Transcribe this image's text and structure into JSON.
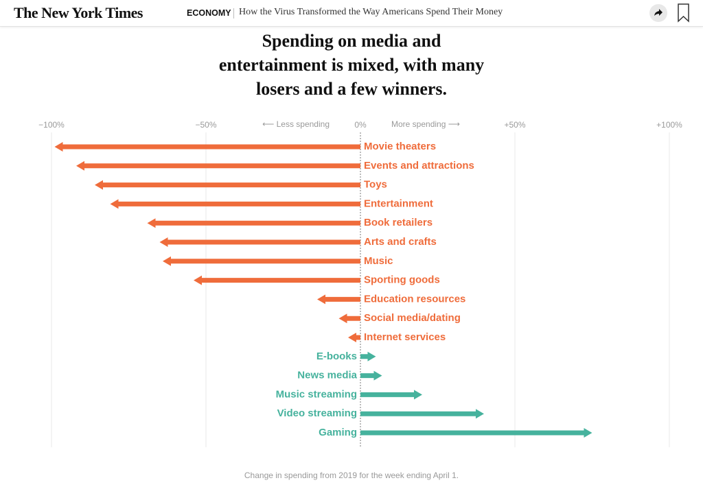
{
  "header": {
    "logo": "The New York Times",
    "section": "ECONOMY",
    "headline": "How the Virus Transformed the Way Americans Spend Their Money"
  },
  "chart_data": {
    "type": "arrow-bar",
    "title": "Spending on media and entertainment is mixed, with many losers and a few winners.",
    "annotations": {
      "less": "⟵ Less spending",
      "more": "More spending ⟶"
    },
    "note": "Change in spending from 2019 for the week ending April 1.",
    "categories": [
      "Movie theaters",
      "Events and attractions",
      "Toys",
      "Entertainment",
      "Book retailers",
      "Arts and crafts",
      "Music",
      "Sporting goods",
      "Education resources",
      "Social media/dating",
      "Internet services",
      "E-books",
      "News media",
      "Music streaming",
      "Video streaming",
      "Gaming"
    ],
    "values": [
      -99,
      -92,
      -86,
      -81,
      -69,
      -65,
      -64,
      -54,
      -14,
      -7,
      -4,
      5,
      7,
      20,
      40,
      75
    ],
    "negative_color": "#ef6c3b",
    "positive_color": "#46b29d",
    "xlim": [
      -100,
      100
    ],
    "xticks": [
      {
        "value": -100,
        "label": "−100%"
      },
      {
        "value": -50,
        "label": "−50%"
      },
      {
        "value": 0,
        "label": "0%"
      },
      {
        "value": 50,
        "label": "+50%"
      },
      {
        "value": 100,
        "label": "+100%"
      }
    ],
    "grid": true
  }
}
